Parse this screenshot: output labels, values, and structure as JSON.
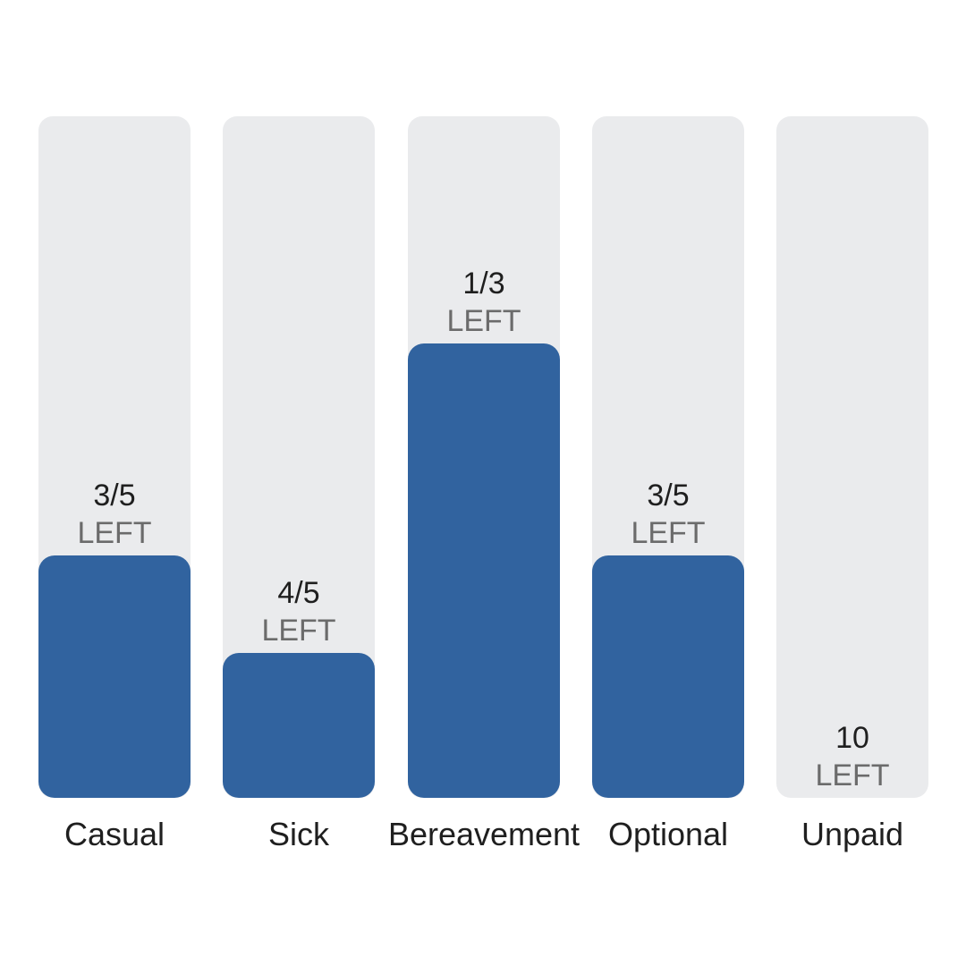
{
  "colors": {
    "track": "#eaebed",
    "fill": "#31639f",
    "value_text": "#1f1f1f",
    "left_text": "#6b6b6b"
  },
  "chart_data": {
    "type": "bar",
    "title": "",
    "xlabel": "",
    "ylabel": "",
    "categories": [
      "Casual",
      "Sick",
      "Bereavement",
      "Optional",
      "Unpaid"
    ],
    "remaining": [
      3,
      4,
      1,
      3,
      10
    ],
    "totals": [
      5,
      5,
      3,
      5,
      null
    ],
    "fill_fraction": [
      0.356,
      0.213,
      0.667,
      0.356,
      0.0
    ],
    "value_labels": [
      "3/5",
      "4/5",
      "1/3",
      "3/5",
      "10"
    ],
    "unit_label": "LEFT",
    "grid": false,
    "legend": "none"
  }
}
